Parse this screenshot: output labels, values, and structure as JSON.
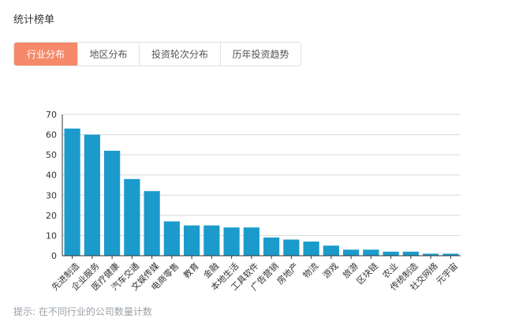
{
  "page": {
    "title": "统计榜单",
    "hint": "提示: 在不同行业的公司数量计数"
  },
  "tabs": [
    {
      "label": "行业分布",
      "active": true
    },
    {
      "label": "地区分布",
      "active": false
    },
    {
      "label": "投资轮次分布",
      "active": false
    },
    {
      "label": "历年投资趋势",
      "active": false
    }
  ],
  "colors": {
    "bar": "#1a9bcc",
    "active_tab": "#f5896a",
    "grid": "#d9d9d9",
    "axis": "#333333"
  },
  "chart_data": {
    "type": "bar",
    "categories": [
      "先进制造",
      "企业服务",
      "医疗健康",
      "汽车交通",
      "文娱传媒",
      "电商零售",
      "教育",
      "金融",
      "本地生活",
      "工具软件",
      "广告营销",
      "房地产",
      "物流",
      "游戏",
      "旅游",
      "区块链",
      "农业",
      "传统制造",
      "社交网络",
      "元宇宙"
    ],
    "values": [
      63,
      60,
      52,
      38,
      32,
      17,
      15,
      15,
      14,
      14,
      9,
      8,
      7,
      5,
      3,
      3,
      2,
      2,
      1,
      1
    ],
    "ylim": [
      0,
      70
    ],
    "yticks": [
      0,
      10,
      20,
      30,
      40,
      50,
      60,
      70
    ],
    "grid": true,
    "title": "",
    "xlabel": "",
    "ylabel": ""
  }
}
